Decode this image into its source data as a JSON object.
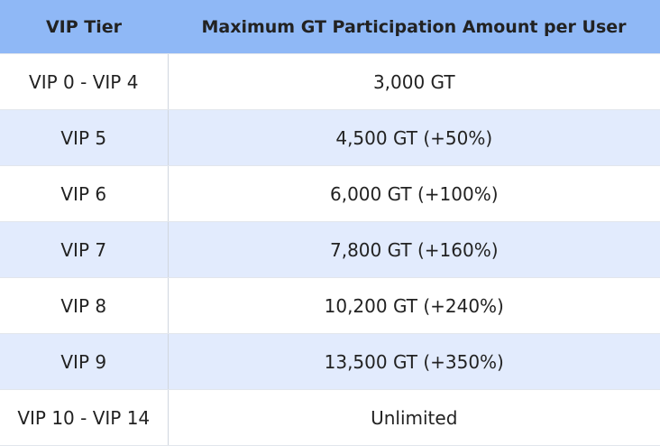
{
  "table": {
    "header": [
      "VIP Tier",
      "Maximum GT Participation Amount per User"
    ],
    "rows": [
      [
        "VIP 0 - VIP 4",
        "3,000 GT"
      ],
      [
        "VIP 5",
        "4,500 GT (+50%)"
      ],
      [
        "VIP 6",
        "6,000 GT (+100%)"
      ],
      [
        "VIP 7",
        "7,800 GT (+160%)"
      ],
      [
        "VIP 8",
        "10,200 GT (+240%)"
      ],
      [
        "VIP 9",
        "13,500 GT (+350%)"
      ],
      [
        "VIP 10 - VIP 14",
        "Unlimited"
      ]
    ]
  }
}
